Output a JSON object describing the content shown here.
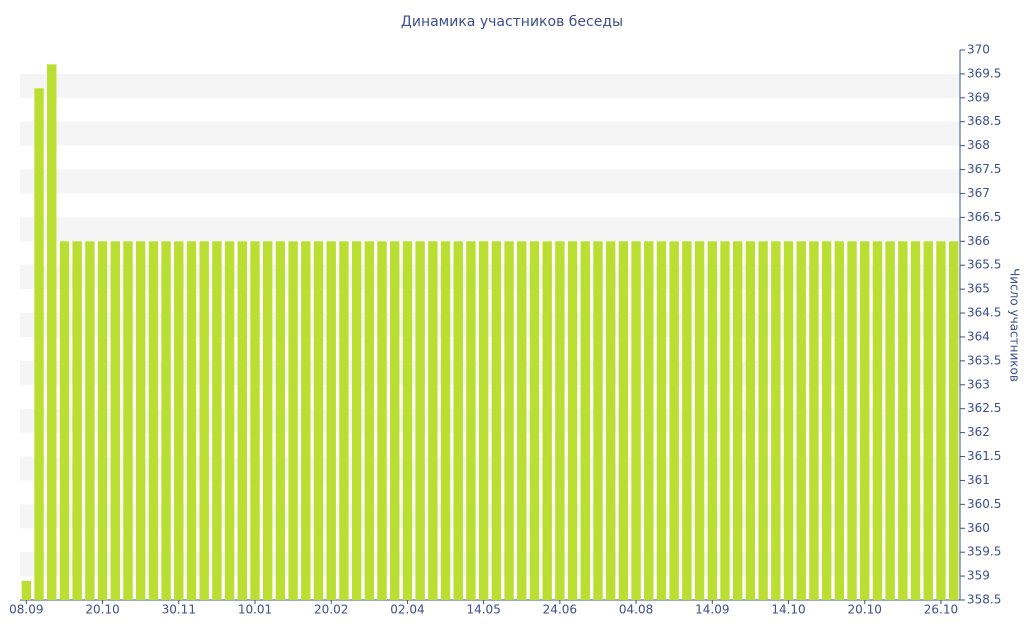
{
  "chart_data": {
    "type": "bar",
    "title": "Динамика участников беседы",
    "y_axis_label": "Число участников",
    "y_axis_side": "right",
    "categories": [
      "08.09",
      null,
      null,
      null,
      null,
      null,
      "20.10",
      null,
      null,
      null,
      null,
      null,
      "30.11",
      null,
      null,
      null,
      null,
      null,
      "10.01",
      null,
      null,
      null,
      null,
      null,
      "20.02",
      null,
      null,
      null,
      null,
      null,
      "02.04",
      null,
      null,
      null,
      null,
      null,
      "14.05",
      null,
      null,
      null,
      null,
      null,
      "24.06",
      null,
      null,
      null,
      null,
      null,
      "04.08",
      null,
      null,
      null,
      null,
      null,
      "14.09",
      null,
      null,
      null,
      null,
      null,
      "14.10",
      null,
      null,
      null,
      null,
      null,
      "20.10",
      null,
      null,
      null,
      null,
      null,
      "26.10",
      null
    ],
    "values": [
      358.9,
      369.2,
      369.7,
      366,
      366,
      366,
      366,
      366,
      366,
      366,
      366,
      366,
      366,
      366,
      366,
      366,
      366,
      366,
      366,
      366,
      366,
      366,
      366,
      366,
      366,
      366,
      366,
      366,
      366,
      366,
      366,
      366,
      366,
      366,
      366,
      366,
      366,
      366,
      366,
      366,
      366,
      366,
      366,
      366,
      366,
      366,
      366,
      366,
      366,
      366,
      366,
      366,
      366,
      366,
      366,
      366,
      366,
      366,
      366,
      366,
      366,
      366,
      366,
      366,
      366,
      366,
      366,
      366,
      366,
      366,
      366,
      366,
      366,
      366
    ],
    "color": "#bade32",
    "ylim": [
      358.5,
      370
    ],
    "yticks": [
      358.5,
      359,
      359.5,
      360,
      360.5,
      361,
      361.5,
      362,
      362.5,
      363,
      363.5,
      364,
      364.5,
      365,
      365.5,
      366,
      366.5,
      367,
      367.5,
      368,
      368.5,
      369,
      369.5,
      370
    ],
    "grid": true,
    "band_color": "#f5f5f5"
  }
}
